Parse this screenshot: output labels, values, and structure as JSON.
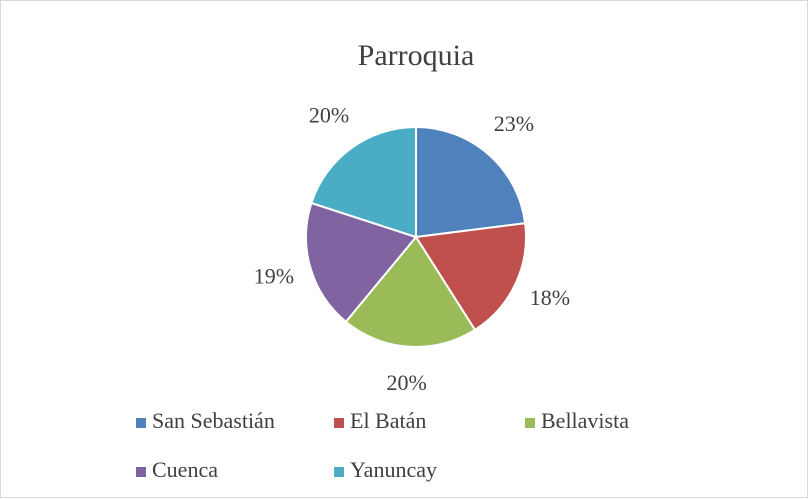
{
  "chart_data": {
    "type": "pie",
    "title": "Parroquia",
    "categories": [
      "San Sebastián",
      "El Batán",
      "Bellavista",
      "Cuenca",
      "Yanuncay"
    ],
    "values": [
      23,
      18,
      20,
      19,
      20
    ],
    "value_labels": [
      "23%",
      "18%",
      "20%",
      "19%",
      "20%"
    ],
    "colors": [
      "#4f81bd",
      "#c0504d",
      "#9bbb59",
      "#8064a2",
      "#4bacc6"
    ],
    "legend": "bottom"
  }
}
